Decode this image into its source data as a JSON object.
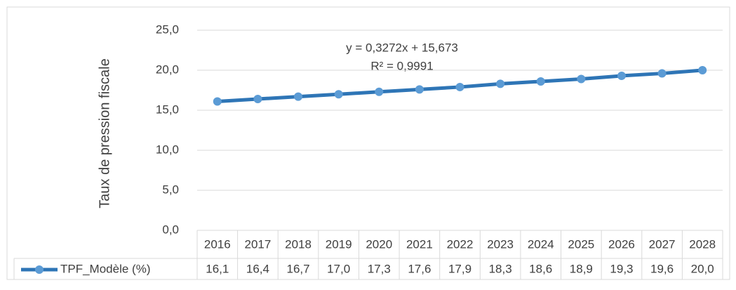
{
  "chart_data": {
    "type": "line",
    "y_label": "Taux de pression fiscale",
    "annotations": [
      "y = 0,3272x + 15,673",
      "R² = 0,9991"
    ],
    "categories": [
      "2016",
      "2017",
      "2018",
      "2019",
      "2020",
      "2021",
      "2022",
      "2023",
      "2024",
      "2025",
      "2026",
      "2027",
      "2028"
    ],
    "series": [
      {
        "name": "TPF_Modèle (%)",
        "color": "#2e75b6",
        "marker_color": "#5b9bd5",
        "values": [
          16.1,
          16.4,
          16.7,
          17.0,
          17.3,
          17.6,
          17.9,
          18.3,
          18.6,
          18.9,
          19.3,
          19.6,
          20.0
        ],
        "value_labels": [
          "16,1",
          "16,4",
          "16,7",
          "17,0",
          "17,3",
          "17,6",
          "17,9",
          "18,3",
          "18,6",
          "18,9",
          "19,3",
          "19,6",
          "20,0"
        ]
      }
    ],
    "ylim": [
      0,
      25
    ],
    "yticks": [
      {
        "value": 0,
        "label": "0,0"
      },
      {
        "value": 5,
        "label": "5,0"
      },
      {
        "value": 10,
        "label": "10,0"
      },
      {
        "value": 15,
        "label": "15,0"
      },
      {
        "value": 20,
        "label": "20,0"
      },
      {
        "value": 25,
        "label": "25,0"
      }
    ],
    "grid": true,
    "data_table": true
  }
}
